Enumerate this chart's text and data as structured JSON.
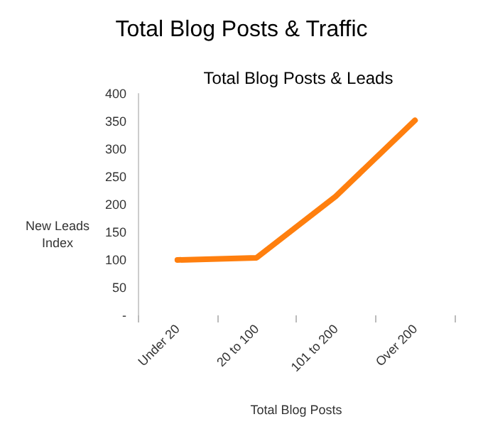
{
  "chart_data": {
    "type": "line",
    "title": "Total Blog Posts & Traffic",
    "subtitle": "Total Blog Posts & Leads",
    "xlabel": "Total Blog Posts",
    "ylabel": "New Leads\nIndex",
    "categories": [
      "Under 20",
      "20 to 100",
      "101 to 200",
      "Over 200"
    ],
    "series": [
      {
        "color": "#ff7f0e",
        "values": [
          100,
          104,
          215,
          352
        ]
      }
    ],
    "ylim": [
      0,
      400
    ],
    "yticks": [
      {
        "value": 0,
        "label": "-"
      },
      50,
      100,
      150,
      200,
      250,
      300,
      350,
      400
    ],
    "grid": false,
    "marker": "none",
    "line_style": "solid"
  }
}
